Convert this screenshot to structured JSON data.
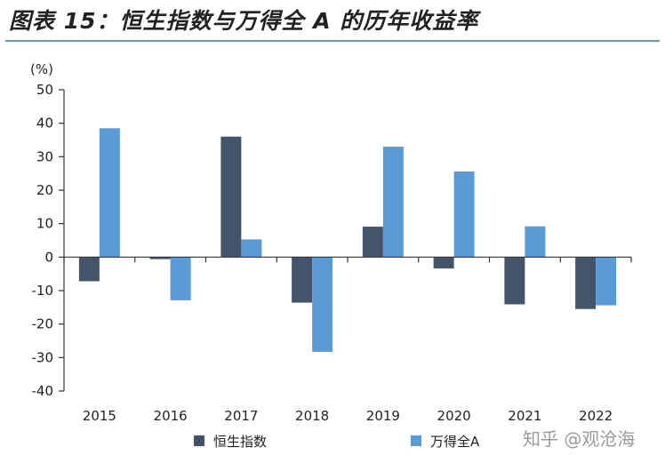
{
  "header": {
    "title": "图表 15：恒生指数与万得全 A 的历年收益率"
  },
  "watermark": "知乎 @观沧海",
  "chart_data": {
    "type": "bar",
    "title": "图表 15：恒生指数与万得全 A 的历年收益率",
    "y_unit_label": "(%)",
    "xlabel": "",
    "ylabel": "",
    "categories": [
      "2015",
      "2016",
      "2017",
      "2018",
      "2019",
      "2020",
      "2021",
      "2022"
    ],
    "series": [
      {
        "name": "恒生指数",
        "color": "#44546a",
        "values": [
          -7.2,
          -0.6,
          36.0,
          -13.6,
          9.1,
          -3.4,
          -14.1,
          -15.5
        ]
      },
      {
        "name": "万得全A",
        "color": "#5b9bd5",
        "values": [
          38.5,
          -12.9,
          5.3,
          -28.3,
          33.0,
          25.6,
          9.2,
          -14.4
        ]
      }
    ],
    "ylim": [
      -40,
      50
    ],
    "yticks": [
      -40,
      -30,
      -20,
      -10,
      0,
      10,
      20,
      30,
      40,
      50
    ],
    "grid": false,
    "legend_position": "bottom"
  }
}
